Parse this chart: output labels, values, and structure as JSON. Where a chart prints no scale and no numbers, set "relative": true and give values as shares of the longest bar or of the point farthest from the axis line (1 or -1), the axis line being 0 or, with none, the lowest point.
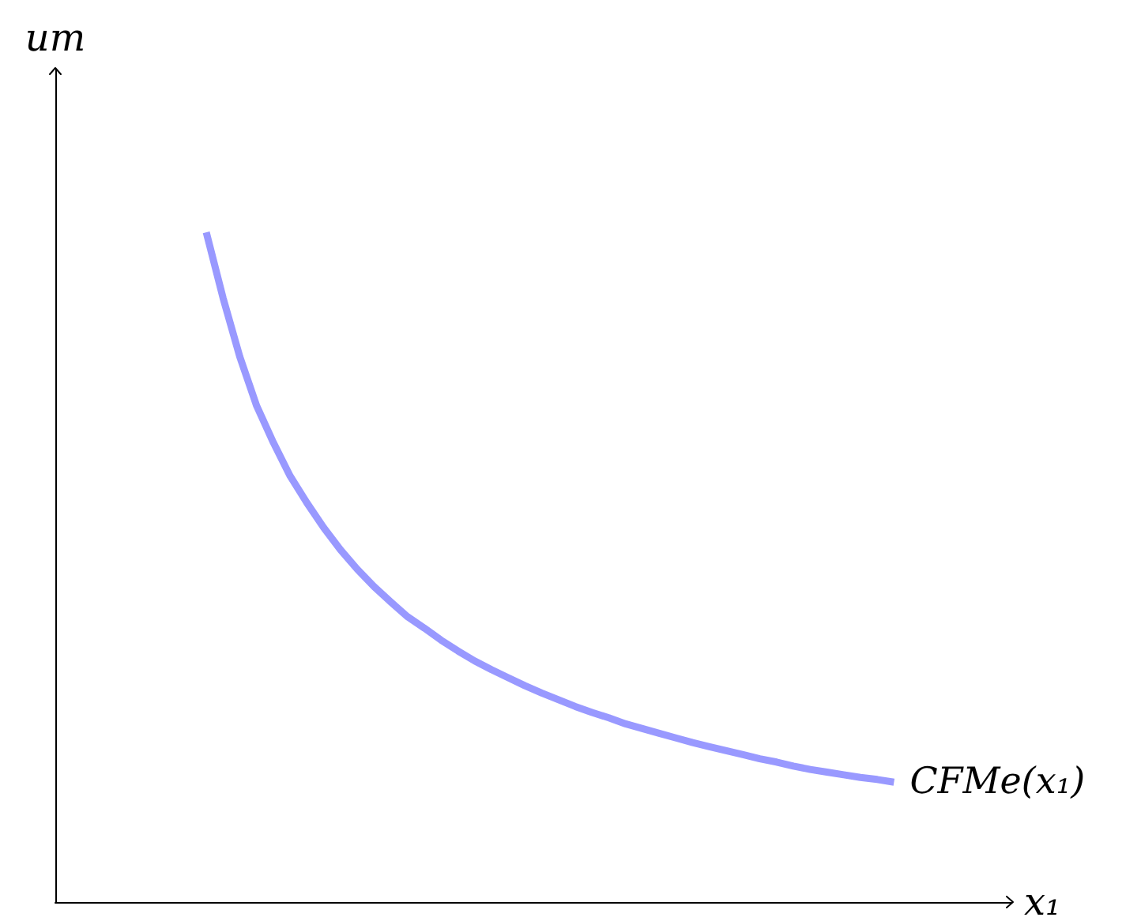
{
  "chart_data": {
    "type": "line",
    "relative": true,
    "ylabel": "um",
    "xlabel": "x₁",
    "categories": [
      null,
      null,
      null,
      null,
      null,
      null,
      null,
      null,
      null,
      null,
      null,
      null,
      null,
      null,
      null,
      null,
      null,
      null,
      null,
      null,
      null,
      null,
      null,
      null,
      null,
      null,
      null,
      null,
      null,
      null,
      null,
      null,
      null,
      null,
      null,
      null,
      null,
      null,
      null,
      null,
      null,
      null,
      null,
      null,
      null,
      null,
      null,
      null,
      null,
      null,
      null,
      null,
      null,
      null,
      null,
      null,
      null,
      null
    ],
    "series": [
      {
        "name": "CFMe(x₁)",
        "color": "#9999ff",
        "values": [
          null,
          null,
          null,
          null,
          null,
          null,
          null,
          null,
          null,
          1,
          0.902,
          0.814,
          0.741,
          0.686,
          0.636,
          0.596,
          0.559,
          0.526,
          0.497,
          0.471,
          0.448,
          0.426,
          0.409,
          0.391,
          0.375,
          0.36,
          0.347,
          0.335,
          0.323,
          0.312,
          0.302,
          0.292,
          0.283,
          0.275,
          0.266,
          0.259,
          0.252,
          0.245,
          0.238,
          0.232,
          0.226,
          0.22,
          0.214,
          0.209,
          0.203,
          0.198,
          0.194,
          0.19,
          0.186,
          0.183,
          0.179,
          null,
          null,
          null,
          null,
          null,
          null,
          null
        ]
      }
    ],
    "grid": false,
    "legend": false,
    "marker": "none",
    "line_style": "solid"
  }
}
